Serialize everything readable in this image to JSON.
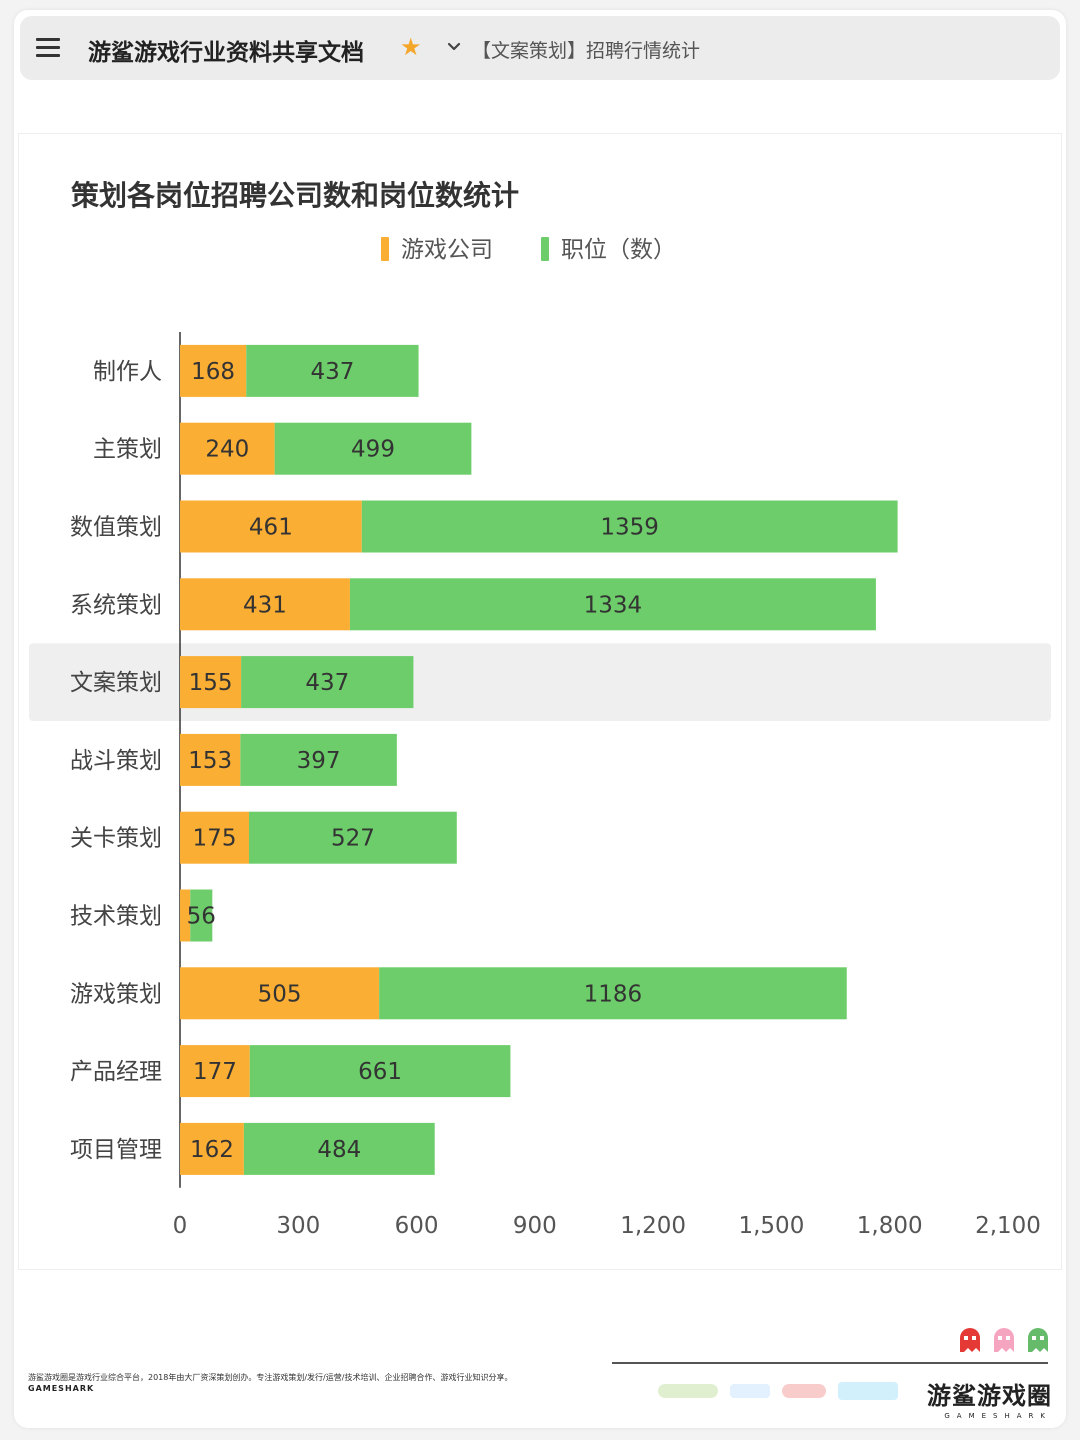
{
  "header": {
    "doc_title": "游鲨游戏行业资料共享文档",
    "breadcrumb": "【文案策划】招聘行情统计"
  },
  "colors": {
    "companies": "#fbae34",
    "positions": "#6dcd6a",
    "highlight_row": "#efefef"
  },
  "chart_data": {
    "type": "bar",
    "orientation": "horizontal",
    "stacked": true,
    "title": "策划各岗位招聘公司数和岗位数统计",
    "categories": [
      "制作人",
      "主策划",
      "数值策划",
      "系统策划",
      "文案策划",
      "战斗策划",
      "关卡策划",
      "技术策划",
      "游戏策划",
      "产品经理",
      "项目管理"
    ],
    "series": [
      {
        "name": "游戏公司",
        "values": [
          168,
          240,
          461,
          431,
          155,
          153,
          175,
          26,
          505,
          177,
          162
        ]
      },
      {
        "name": "职位（数）",
        "values": [
          437,
          499,
          1359,
          1334,
          437,
          397,
          527,
          56,
          1186,
          661,
          484
        ]
      }
    ],
    "data_labels": {
      "游戏公司": [
        "168",
        "240",
        "461",
        "431",
        "155",
        "153",
        "175",
        "",
        "505",
        "177",
        "162"
      ],
      "职位（数）": [
        "437",
        "499",
        "1359",
        "1334",
        "437",
        "397",
        "527",
        "56",
        "1186",
        "661",
        "484"
      ]
    },
    "xlim": [
      0,
      2100
    ],
    "xticks": [
      0,
      300,
      600,
      900,
      1200,
      1500,
      1800,
      2100
    ],
    "xtick_labels": [
      "0",
      "300",
      "600",
      "900",
      "1,200",
      "1,500",
      "1,800",
      "2,100"
    ],
    "highlighted_category": "文案策划",
    "legend_position": "top-center",
    "grid": false
  },
  "footer": {
    "description": "游鲨游戏圈是游戏行业综合平台，2018年由大厂资深策划创办。专注游戏策划/发行/运营/技术培训、企业招聘合作、游戏行业知识分享。",
    "brand_en": "GAMESHARK",
    "logo_cn": "游鲨游戏圈",
    "logo_en": "GAMESHARK"
  }
}
